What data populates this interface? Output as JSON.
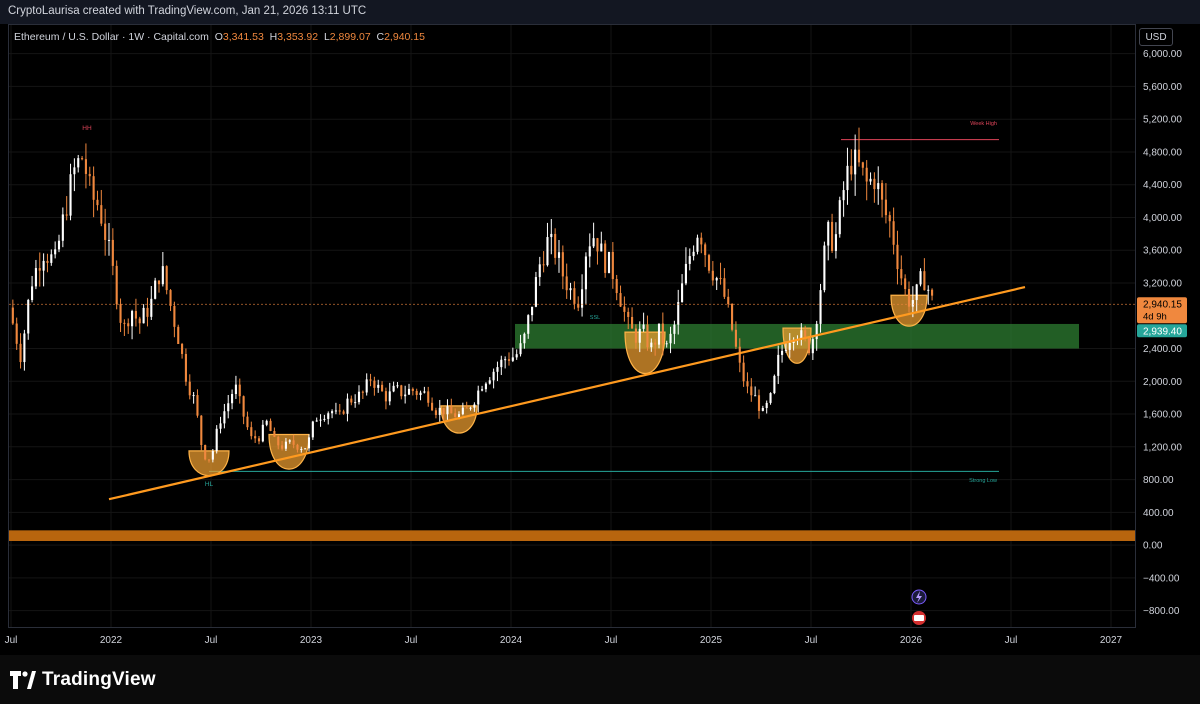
{
  "header": {
    "text": "CryptoLaurisa created with TradingView.com, Jan 21, 2026 13:11 UTC"
  },
  "legend": {
    "symbol": "Ethereum / U.S. Dollar · 1W · Capital.com",
    "o_label": "O",
    "o_value": "3,341.53",
    "h_label": "H",
    "h_value": "3,353.92",
    "l_label": "L",
    "l_value": "2,899.07",
    "c_label": "C",
    "c_value": "2,940.15"
  },
  "currency": "USD",
  "price_labels": {
    "last": "2,940.15",
    "countdown": "4d 9h",
    "zone": "2,939.40"
  },
  "annotations": {
    "hh": "HH",
    "hl": "HL",
    "week_high": "Week High",
    "strong_low": "Strong Low",
    "ssl": "SSL"
  },
  "brand": "TradingView",
  "colors": {
    "up": "#ffffff",
    "down": "#f0883e",
    "trendline": "#ff9a1f",
    "zone": "#2e7d32",
    "cup": "#f0a030",
    "price_tag": "#f0883e",
    "zone_tag": "#26a69a"
  },
  "chart_data": {
    "type": "candlestick",
    "y_axis": {
      "ticks": [
        6000,
        5600,
        5200,
        4800,
        4400,
        4000,
        3600,
        3200,
        2400,
        2000,
        1600,
        1200,
        800,
        400,
        0,
        -400,
        -800
      ],
      "tick_labels": [
        "6,000.00",
        "5,600.00",
        "5,200.00",
        "4,800.00",
        "4,400.00",
        "4,000.00",
        "3,600.00",
        "3,200.00",
        "2,400.00",
        "2,000.00",
        "1,600.00",
        "1,200.00",
        "800.00",
        "400.00",
        "0.00",
        "−400.00",
        "−800.00"
      ],
      "range": [
        -1000,
        6350
      ]
    },
    "x_axis": {
      "ticks": [
        {
          "label": "Jul",
          "t": 2021.5
        },
        {
          "label": "2022",
          "t": 2022.0
        },
        {
          "label": "Jul",
          "t": 2022.5
        },
        {
          "label": "2023",
          "t": 2023.0
        },
        {
          "label": "Jul",
          "t": 2023.5
        },
        {
          "label": "2024",
          "t": 2024.0
        },
        {
          "label": "Jul",
          "t": 2024.5
        },
        {
          "label": "2025",
          "t": 2025.0
        },
        {
          "label": "Jul",
          "t": 2025.5
        },
        {
          "label": "2026",
          "t": 2026.0
        },
        {
          "label": "Jul",
          "t": 2026.5
        },
        {
          "label": "2027",
          "t": 2027.0
        }
      ],
      "range": [
        2021.49,
        2027.12
      ]
    },
    "price_path": [
      [
        2021.49,
        2900
      ],
      [
        2021.55,
        2300
      ],
      [
        2021.6,
        3200
      ],
      [
        2021.66,
        3600
      ],
      [
        2021.72,
        3450
      ],
      [
        2021.78,
        4200
      ],
      [
        2021.82,
        4600
      ],
      [
        2021.86,
        4750
      ],
      [
        2021.9,
        4250
      ],
      [
        2021.94,
        4150
      ],
      [
        2021.98,
        3700
      ],
      [
        2022.02,
        3200
      ],
      [
        2022.06,
        2600
      ],
      [
        2022.1,
        2900
      ],
      [
        2022.14,
        2700
      ],
      [
        2022.2,
        2950
      ],
      [
        2022.25,
        3400
      ],
      [
        2022.3,
        2900
      ],
      [
        2022.34,
        2500
      ],
      [
        2022.38,
        2000
      ],
      [
        2022.42,
        1750
      ],
      [
        2022.46,
        1100
      ],
      [
        2022.5,
        1050
      ],
      [
        2022.54,
        1500
      ],
      [
        2022.58,
        1700
      ],
      [
        2022.62,
        1950
      ],
      [
        2022.66,
        1600
      ],
      [
        2022.7,
        1300
      ],
      [
        2022.74,
        1320
      ],
      [
        2022.78,
        1500
      ],
      [
        2022.82,
        1250
      ],
      [
        2022.86,
        1200
      ],
      [
        2022.9,
        1250
      ],
      [
        2022.94,
        1200
      ],
      [
        2022.98,
        1200
      ],
      [
        2023.02,
        1550
      ],
      [
        2023.06,
        1600
      ],
      [
        2023.1,
        1650
      ],
      [
        2023.14,
        1550
      ],
      [
        2023.18,
        1750
      ],
      [
        2023.22,
        1800
      ],
      [
        2023.26,
        1850
      ],
      [
        2023.3,
        2050
      ],
      [
        2023.34,
        1900
      ],
      [
        2023.38,
        1800
      ],
      [
        2023.42,
        1900
      ],
      [
        2023.46,
        1850
      ],
      [
        2023.5,
        1900
      ],
      [
        2023.54,
        1850
      ],
      [
        2023.58,
        1850
      ],
      [
        2023.62,
        1650
      ],
      [
        2023.66,
        1650
      ],
      [
        2023.7,
        1600
      ],
      [
        2023.74,
        1580
      ],
      [
        2023.78,
        1650
      ],
      [
        2023.82,
        1800
      ],
      [
        2023.86,
        2000
      ],
      [
        2023.9,
        2100
      ],
      [
        2023.94,
        2200
      ],
      [
        2023.98,
        2300
      ],
      [
        2024.02,
        2300
      ],
      [
        2024.06,
        2450
      ],
      [
        2024.1,
        2900
      ],
      [
        2024.14,
        3400
      ],
      [
        2024.18,
        3700
      ],
      [
        2024.22,
        3600
      ],
      [
        2024.26,
        3300
      ],
      [
        2024.3,
        3100
      ],
      [
        2024.34,
        3000
      ],
      [
        2024.38,
        3700
      ],
      [
        2024.42,
        3800
      ],
      [
        2024.46,
        3500
      ],
      [
        2024.5,
        3400
      ],
      [
        2024.54,
        3100
      ],
      [
        2024.58,
        2700
      ],
      [
        2024.62,
        2550
      ],
      [
        2024.66,
        2600
      ],
      [
        2024.7,
        2400
      ],
      [
        2024.74,
        2600
      ],
      [
        2024.78,
        2400
      ],
      [
        2024.82,
        2700
      ],
      [
        2024.86,
        3200
      ],
      [
        2024.9,
        3600
      ],
      [
        2024.94,
        3900
      ],
      [
        2024.98,
        3500
      ],
      [
        2025.02,
        3300
      ],
      [
        2025.06,
        3100
      ],
      [
        2025.1,
        2700
      ],
      [
        2025.14,
        2200
      ],
      [
        2025.18,
        1900
      ],
      [
        2025.22,
        1800
      ],
      [
        2025.26,
        1600
      ],
      [
        2025.3,
        1800
      ],
      [
        2025.34,
        2300
      ],
      [
        2025.38,
        2500
      ],
      [
        2025.42,
        2650
      ],
      [
        2025.46,
        2500
      ],
      [
        2025.5,
        2400
      ],
      [
        2025.54,
        3000
      ],
      [
        2025.58,
        3800
      ],
      [
        2025.62,
        3700
      ],
      [
        2025.66,
        4300
      ],
      [
        2025.7,
        4700
      ],
      [
        2025.74,
        4600
      ],
      [
        2025.78,
        4400
      ],
      [
        2025.82,
        4500
      ],
      [
        2025.86,
        4100
      ],
      [
        2025.9,
        3900
      ],
      [
        2025.94,
        3400
      ],
      [
        2025.98,
        3000
      ],
      [
        2026.02,
        3000
      ],
      [
        2026.06,
        3300
      ],
      [
        2026.09,
        3100
      ],
      [
        2026.11,
        2940
      ]
    ],
    "trendline": {
      "from": [
        2021.99,
        560
      ],
      "to": [
        2026.57,
        3150
      ]
    },
    "zone": {
      "from_t": 2024.02,
      "to_t": 2026.84,
      "low": 2400,
      "high": 2700
    },
    "week_high": {
      "from_t": 2025.65,
      "to_t": 2026.44,
      "price": 4950
    },
    "strong_low": {
      "from_t": 2022.49,
      "to_t": 2026.44,
      "price": 900
    },
    "band": {
      "low": 50,
      "high": 180
    },
    "cups": [
      {
        "center_t": 2022.49,
        "half_width": 0.1,
        "top": 1150,
        "bottom": 820
      },
      {
        "center_t": 2022.89,
        "half_width": 0.1,
        "top": 1350,
        "bottom": 860
      },
      {
        "center_t": 2023.74,
        "half_width": 0.09,
        "top": 1700,
        "bottom": 1330
      },
      {
        "center_t": 2024.67,
        "half_width": 0.1,
        "top": 2600,
        "bottom": 2000
      },
      {
        "center_t": 2025.43,
        "half_width": 0.07,
        "top": 2650,
        "bottom": 2150
      },
      {
        "center_t": 2025.99,
        "half_width": 0.09,
        "top": 3050,
        "bottom": 2620
      }
    ]
  }
}
